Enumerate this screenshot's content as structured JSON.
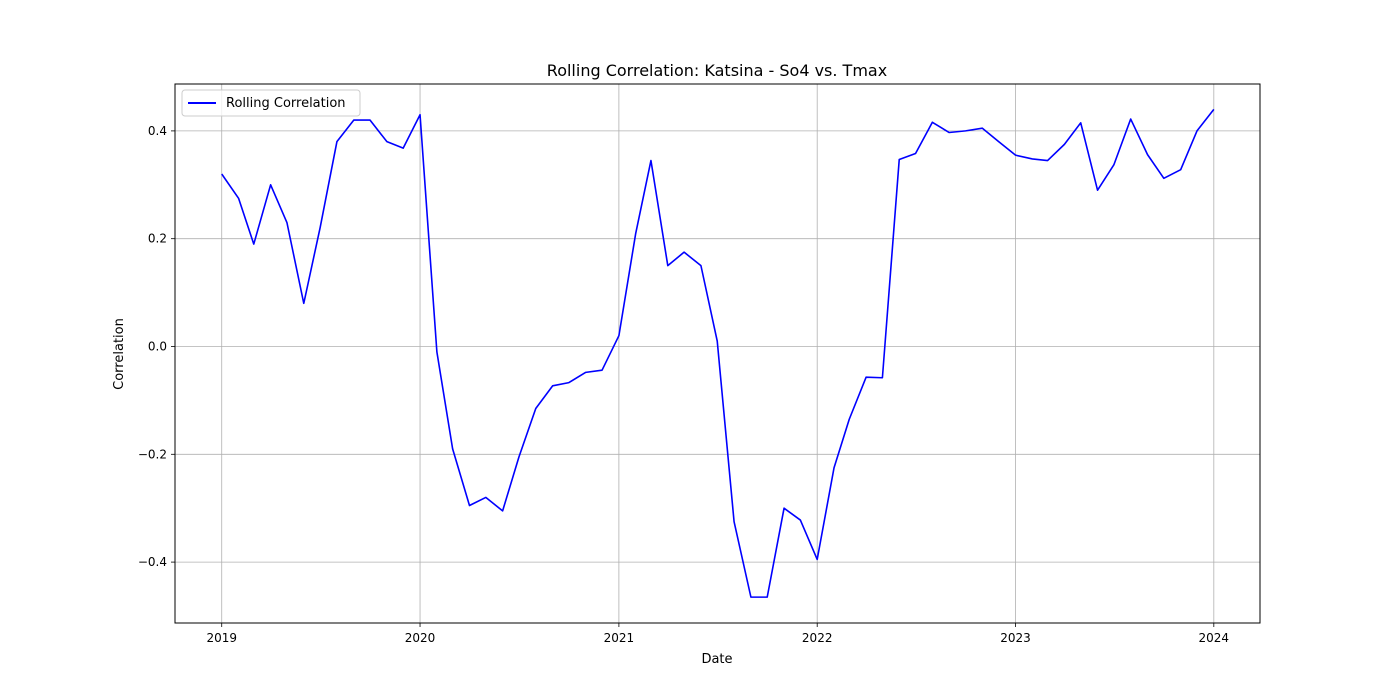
{
  "chart_data": {
    "type": "line",
    "title": "Rolling Correlation: Katsina - So4 vs. Tmax",
    "xlabel": "Date",
    "ylabel": "Correlation",
    "x_ticks": [
      "2019",
      "2020",
      "2021",
      "2022",
      "2023",
      "2024"
    ],
    "y_ticks": [
      "−0.4",
      "−0.2",
      "0.0",
      "0.2",
      "0.4"
    ],
    "y_tick_values": [
      -0.4,
      -0.2,
      0.0,
      0.2,
      0.4
    ],
    "xlim": [
      "2018-10-07",
      "2024-03-26"
    ],
    "ylim": [
      -0.513,
      0.487
    ],
    "grid": true,
    "legend_position": "top-left",
    "series": [
      {
        "name": "Rolling Correlation",
        "color": "#0000ff",
        "x": [
          "2019-01-01",
          "2019-02-01",
          "2019-03-01",
          "2019-04-01",
          "2019-05-01",
          "2019-06-01",
          "2019-07-01",
          "2019-08-01",
          "2019-09-01",
          "2019-10-01",
          "2019-11-01",
          "2019-12-01",
          "2020-01-01",
          "2020-02-01",
          "2020-03-01",
          "2020-04-01",
          "2020-05-01",
          "2020-06-01",
          "2020-07-01",
          "2020-08-01",
          "2020-09-01",
          "2020-10-01",
          "2020-11-01",
          "2020-12-01",
          "2021-01-01",
          "2021-02-01",
          "2021-03-01",
          "2021-04-01",
          "2021-05-01",
          "2021-06-01",
          "2021-07-01",
          "2021-08-01",
          "2021-09-01",
          "2021-10-01",
          "2021-11-01",
          "2021-12-01",
          "2022-01-01",
          "2022-02-01",
          "2022-03-01",
          "2022-04-01",
          "2022-05-01",
          "2022-06-01",
          "2022-07-01",
          "2022-08-01",
          "2022-09-01",
          "2022-10-01",
          "2022-11-01",
          "2022-12-01",
          "2023-01-01",
          "2023-02-01",
          "2023-03-01",
          "2023-04-01",
          "2023-05-01",
          "2023-06-01",
          "2023-07-01",
          "2023-08-01",
          "2023-09-01",
          "2023-10-01",
          "2023-11-01",
          "2023-12-01",
          "2024-01-01"
        ],
        "y": [
          0.32,
          0.275,
          0.19,
          0.3,
          0.23,
          0.08,
          0.22,
          0.38,
          0.42,
          0.42,
          0.38,
          0.368,
          0.43,
          -0.01,
          -0.19,
          -0.295,
          -0.28,
          -0.305,
          -0.205,
          -0.115,
          -0.073,
          -0.067,
          -0.048,
          -0.044,
          0.02,
          0.21,
          0.345,
          0.15,
          0.175,
          0.15,
          0.01,
          -0.325,
          -0.465,
          -0.465,
          -0.3,
          -0.322,
          -0.395,
          -0.225,
          -0.135,
          -0.057,
          -0.058,
          0.347,
          0.358,
          0.416,
          0.397,
          0.4,
          0.405,
          0.38,
          0.355,
          0.348,
          0.345,
          0.375,
          0.415,
          0.29,
          0.337,
          0.422,
          0.356,
          0.312,
          0.328,
          0.4,
          0.44
        ]
      }
    ]
  }
}
